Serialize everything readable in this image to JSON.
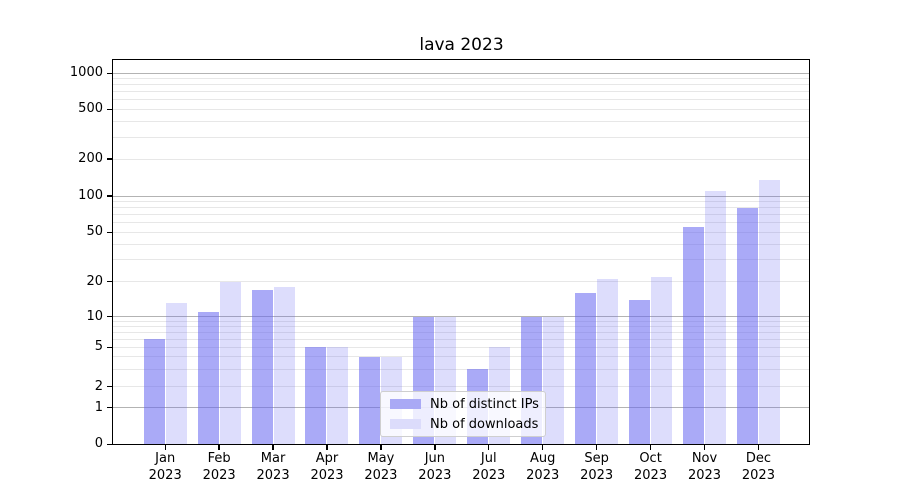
{
  "chart_data": {
    "type": "bar",
    "title": "lava 2023",
    "categories": [
      "Jan 2023",
      "Feb 2023",
      "Mar 2023",
      "Apr 2023",
      "May 2023",
      "Jun 2023",
      "Jul 2023",
      "Aug 2023",
      "Sep 2023",
      "Oct 2023",
      "Nov 2023",
      "Dec 2023"
    ],
    "series": [
      {
        "name": "Nb of distinct IPs",
        "values": [
          6,
          11,
          17,
          5,
          4,
          10,
          3,
          10,
          16,
          14,
          55,
          80
        ]
      },
      {
        "name": "Nb of downloads",
        "values": [
          13,
          20,
          18,
          5,
          4,
          10,
          5,
          10,
          21,
          22,
          110,
          135
        ]
      }
    ],
    "xlabel": "",
    "ylabel": "",
    "y_ticks": [
      0,
      1,
      2,
      5,
      10,
      20,
      50,
      100,
      200,
      500,
      1000
    ],
    "y_scale": "log-like with 0 baseline (ticks 0,1,2,5,10,20,50,100,200,500,1000)",
    "ylim": [
      0,
      1200
    ],
    "grid": true,
    "legend_position": "lower center"
  },
  "legend": {
    "items": [
      {
        "label": "Nb of distinct IPs",
        "color": "#a9a9f5"
      },
      {
        "label": "Nb of downloads",
        "color": "#dcdcfb"
      }
    ]
  },
  "colors": {
    "bar_dark": "rgba(100,100,240,0.55)",
    "bar_light": "rgba(100,100,240,0.22)",
    "grid_major": "#b3b3b3",
    "grid_minor": "#e7e7e7",
    "axis": "#000000"
  }
}
